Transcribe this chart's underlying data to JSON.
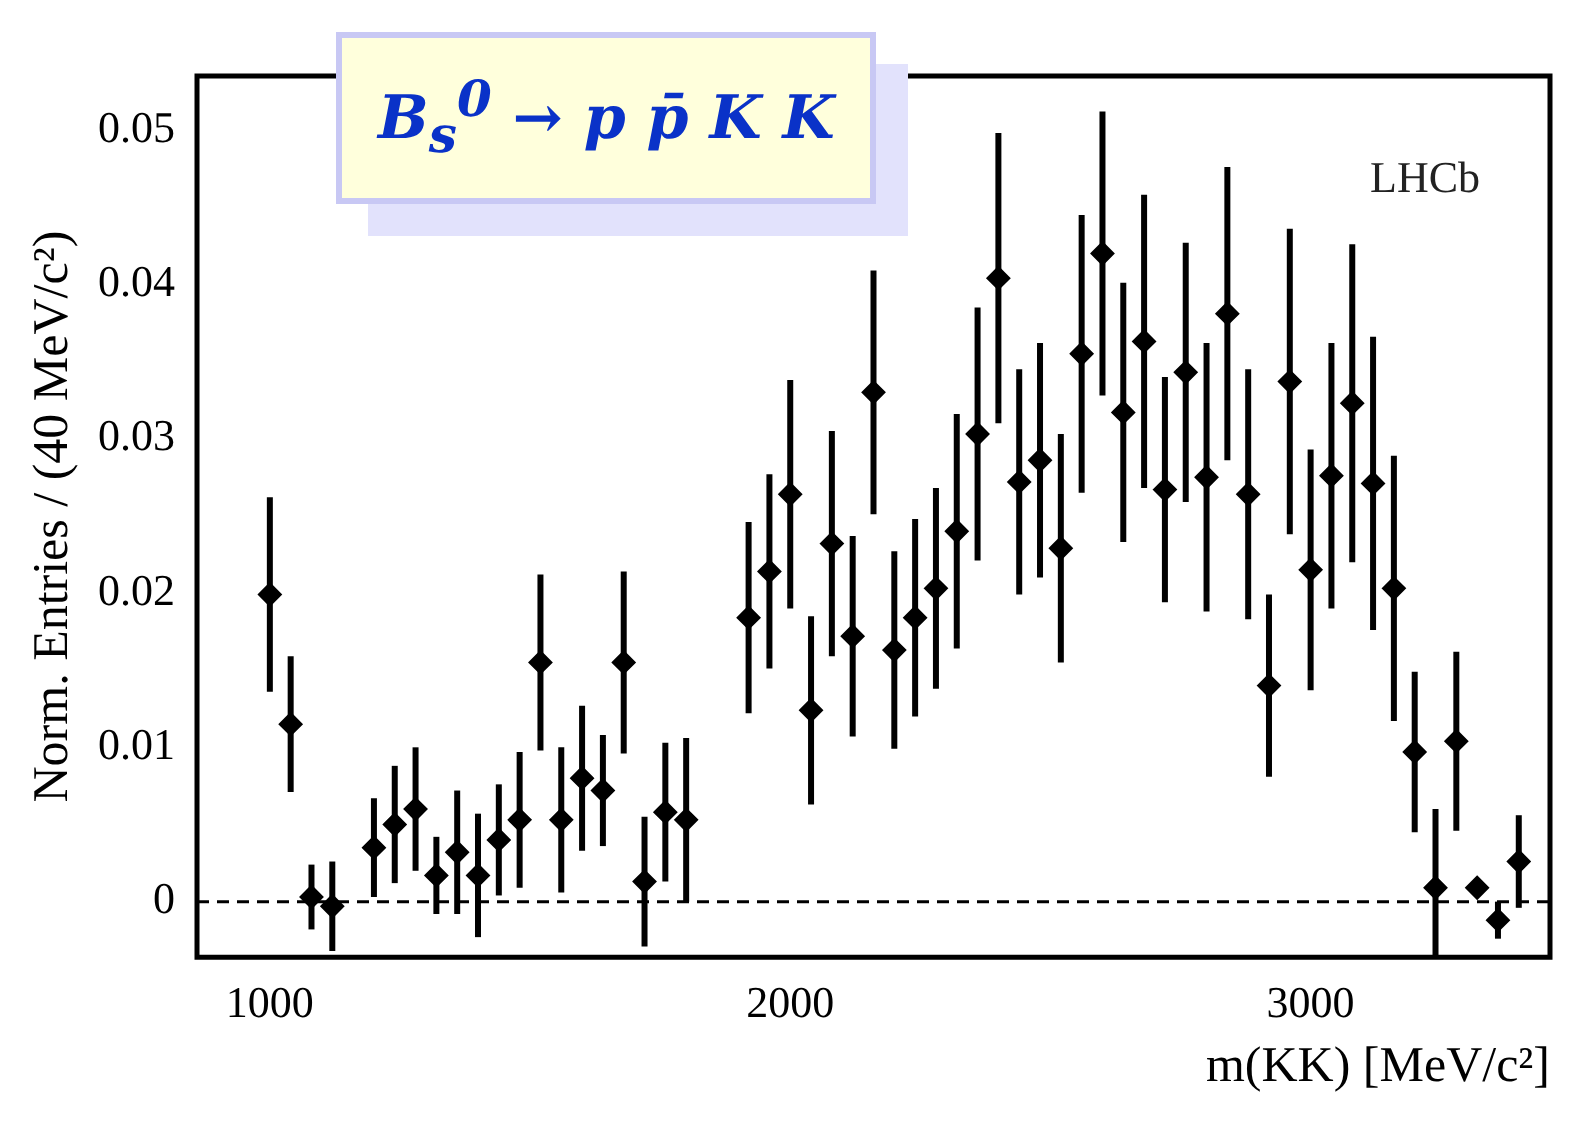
{
  "chart_data": {
    "type": "scatter",
    "title": "B$_{s}$$^{0}$ → p p̄ K K",
    "xlabel": "m(KK) [MeV/c²]",
    "ylabel": "Norm. Entries / (40 MeV/c²)",
    "annotations": [
      "LHCb"
    ],
    "x": [
      1000,
      1040,
      1080,
      1120,
      1200,
      1240,
      1280,
      1320,
      1360,
      1400,
      1440,
      1480,
      1520,
      1560,
      1600,
      1640,
      1680,
      1720,
      1760,
      1800,
      1920,
      1960,
      2000,
      2040,
      2080,
      2120,
      2160,
      2200,
      2240,
      2280,
      2320,
      2360,
      2400,
      2440,
      2480,
      2520,
      2560,
      2600,
      2640,
      2680,
      2720,
      2760,
      2800,
      2840,
      2880,
      2920,
      2960,
      3000,
      3040,
      3080,
      3120,
      3160,
      3200,
      3240,
      3280,
      3320,
      3360,
      3400
    ],
    "series": [
      {
        "color": "#000000",
        "values": [
          0.0199,
          0.0115,
          0.0003,
          -0.0003,
          0.0035,
          0.005,
          0.006,
          0.0017,
          0.0032,
          0.0017,
          0.004,
          0.0053,
          0.0155,
          0.0053,
          0.008,
          0.0072,
          0.0155,
          0.0013,
          0.0058,
          0.0053,
          0.0184,
          0.0214,
          0.0264,
          0.0124,
          0.0232,
          0.0172,
          0.033,
          0.0163,
          0.0184,
          0.0203,
          0.024,
          0.0303,
          0.0404,
          0.0272,
          0.0286,
          0.0229,
          0.0355,
          0.042,
          0.0317,
          0.0363,
          0.0267,
          0.0343,
          0.0275,
          0.0381,
          0.0264,
          0.014,
          0.0337,
          0.0215,
          0.0276,
          0.0323,
          0.0271,
          0.0203,
          0.0097,
          0.0009,
          0.0104,
          0.0009,
          -0.0012,
          0.0026
        ],
        "errors": [
          0.0063,
          0.0044,
          0.0021,
          0.0029,
          0.0032,
          0.0038,
          0.004,
          0.0025,
          0.004,
          0.004,
          0.0036,
          0.0044,
          0.0057,
          0.0047,
          0.0047,
          0.0036,
          0.0059,
          0.0042,
          0.0045,
          0.0053,
          0.0062,
          0.0063,
          0.0074,
          0.0061,
          0.0073,
          0.0065,
          0.0079,
          0.0064,
          0.0064,
          0.0065,
          0.0076,
          0.0082,
          0.0094,
          0.0073,
          0.0076,
          0.0074,
          0.009,
          0.0092,
          0.0084,
          0.0095,
          0.0073,
          0.0084,
          0.0087,
          0.0095,
          0.0081,
          0.0059,
          0.0099,
          0.0078,
          0.0086,
          0.0103,
          0.0095,
          0.0086,
          0.0052,
          [
            -0.0036,
            0.006
          ],
          0.0058,
          0.0003,
          0.0012,
          0.003
        ]
      }
    ],
    "xlim": [
      860,
      3460
    ],
    "ylim": [
      -0.0036,
      0.0535
    ],
    "xticks": [
      1000,
      2000,
      3000
    ],
    "yticks": [
      0,
      0.01,
      0.02,
      0.03,
      0.04,
      0.05
    ],
    "ref_lines": [
      {
        "axis": "y",
        "value": 0,
        "color": "#000000",
        "line_style": "dashed"
      }
    ],
    "marker": "diamond",
    "grid": false,
    "legend": false
  }
}
